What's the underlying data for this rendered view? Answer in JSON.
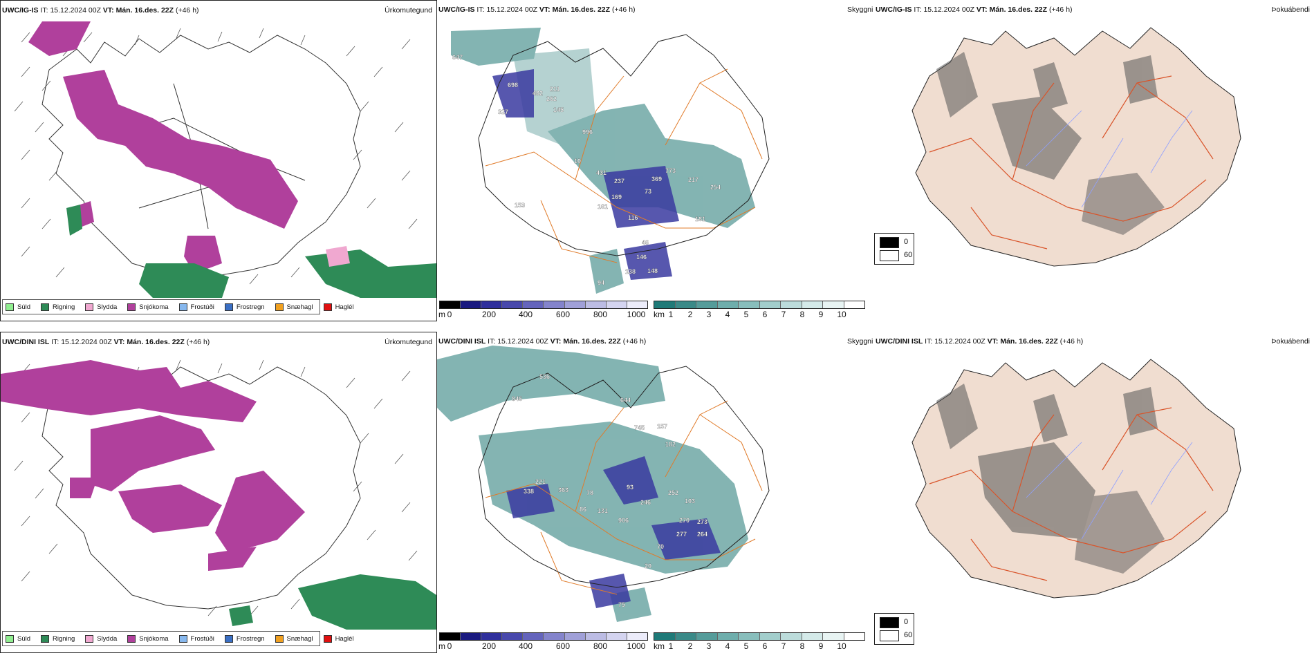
{
  "rows": [
    {
      "model": "UWC/IG-IS",
      "it_label": "IT:",
      "it_value": "15.12.2024 00Z",
      "vt_label": "VT:",
      "vt_value": "Mán. 16.des. 22Z",
      "lead": "(+46 h)",
      "prec_title": "Úrkomutegund",
      "cloud_title": "Skyggni",
      "fog_title": "Þokuábendi"
    },
    {
      "model": "UWC/DINI ISL",
      "it_label": "IT:",
      "it_value": "15.12.2024 00Z",
      "vt_label": "VT:",
      "vt_value": "Mán. 16.des. 22Z",
      "lead": "(+46 h)",
      "prec_title": "Úrkomutegund",
      "cloud_title": "Skyggni",
      "fog_title": "Þokuábendi"
    }
  ],
  "precip_legend": [
    {
      "label": "Súld",
      "color": "#90ee90"
    },
    {
      "label": "Rigning",
      "color": "#2e8b57"
    },
    {
      "label": "Slydda",
      "color": "#f0a8d0"
    },
    {
      "label": "Snjókoma",
      "color": "#b0409c"
    },
    {
      "label": "Frostúði",
      "color": "#87b8ee"
    },
    {
      "label": "Frostregn",
      "color": "#3a6fc4"
    },
    {
      "label": "Snæhagl",
      "color": "#f0a020"
    },
    {
      "label": "Haglél",
      "color": "#e01010"
    }
  ],
  "ceiling_bar": {
    "unit": "m",
    "ticks": [
      "0",
      "200",
      "400",
      "600",
      "800",
      "1000"
    ],
    "colors": [
      "#000000",
      "#1a1a80",
      "#2f2f9c",
      "#4848ac",
      "#6464bc",
      "#8484cc",
      "#a0a0d8",
      "#bcbce4",
      "#d4d4f0",
      "#ececfa"
    ]
  },
  "visibility_bar": {
    "unit": "km",
    "ticks": [
      "1",
      "2",
      "3",
      "4",
      "5",
      "6",
      "7",
      "8",
      "9",
      "10"
    ],
    "colors": [
      "#1f7a78",
      "#3a8a88",
      "#559c9a",
      "#6eaeac",
      "#88bebc",
      "#a2cecc",
      "#bcdcdb",
      "#d4eae9",
      "#e8f4f3",
      "#ffffff"
    ]
  },
  "fog_key": {
    "black": "0",
    "white": "60"
  },
  "cloud_labels_top": [
    "698",
    "482",
    "211",
    "262",
    "145",
    "996",
    "10",
    "431",
    "237",
    "773",
    "217",
    "254",
    "369",
    "169",
    "116",
    "73",
    "181",
    "46",
    "146",
    "138",
    "148",
    "94",
    "647",
    "327",
    "161",
    "153"
  ],
  "cloud_labels_bottom": [
    "536",
    "846",
    "644",
    "745",
    "157",
    "182",
    "338",
    "221",
    "363",
    "78",
    "93",
    "252",
    "103",
    "246",
    "131",
    "86",
    "906",
    "270",
    "273",
    "277",
    "264",
    "70",
    "20",
    "75"
  ]
}
